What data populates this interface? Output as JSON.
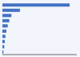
{
  "chart_data": {
    "type": "bar",
    "orientation": "horizontal",
    "categories": [
      null,
      null,
      null,
      null,
      null,
      null,
      null,
      null,
      null,
      null
    ],
    "values": [
      2530,
      660,
      340,
      260,
      200,
      150,
      115,
      90,
      70,
      40
    ],
    "color": "#4472c4",
    "xlim": [
      0,
      2800
    ],
    "tick_labels": false
  }
}
